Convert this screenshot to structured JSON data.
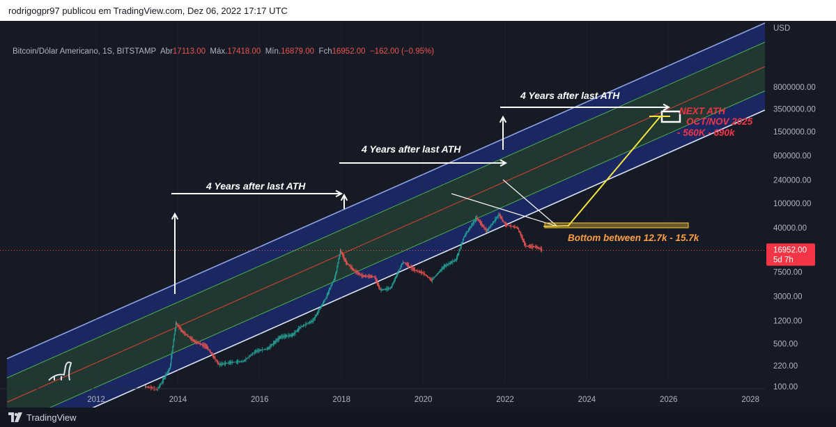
{
  "header": {
    "publisher_line": "rodrigogpr97 publicou em TradingView.com, Dez 06, 2022 17:17 UTC"
  },
  "symbol_bar": {
    "symbol": "Bitcoin/Dólar Americano, 1S, BITSTAMP",
    "open_label": "Abr",
    "open": "17113.00",
    "high_label": "Máx.",
    "high": "17418.00",
    "low_label": "Mín.",
    "low": "16879.00",
    "close_label": "Fch",
    "close": "16952.00",
    "change": "−162.00 (−0.95%)"
  },
  "footer": {
    "brand": "TradingView"
  },
  "colors": {
    "background": "#161a25",
    "channel_outer": "#1b2a6b",
    "channel_inner": "#223a2c",
    "channel_line": "#8fa4e8",
    "mid_line": "#e0442f",
    "green_line": "#4caf50",
    "up_candle": "#26a69a",
    "down_candle": "#ef5350",
    "price_label_bg": "#f23645",
    "annotation_white": "#ffffff",
    "annotation_yellow": "#f5e642",
    "annotation_orange": "#ff9f43",
    "annotation_red": "#f23645"
  },
  "chart_data": {
    "type": "line",
    "scale": "log",
    "currency_label": "USD",
    "x_ticks": [
      "2012",
      "2014",
      "2016",
      "2018",
      "2020",
      "2022",
      "2024",
      "2026",
      "2028"
    ],
    "y_ticks": [
      "8000000.00",
      "3500000.00",
      "1500000.00",
      "600000.00",
      "240000.00",
      "100000.00",
      "40000.00",
      "7500.00",
      "3000.00",
      "1200.00",
      "500.00",
      "220.00",
      "100.00"
    ],
    "y_tick_values": [
      8000000,
      3500000,
      1500000,
      600000,
      240000,
      100000,
      40000,
      7500,
      3000,
      1200,
      500,
      220,
      100
    ],
    "last_price": "16952.00",
    "last_price_value": 16952,
    "countdown": "5d 7h",
    "series": [
      {
        "name": "BTCUSD",
        "x": [
          2013.2,
          2013.5,
          2013.8,
          2013.95,
          2014.1,
          2014.4,
          2014.7,
          2015.0,
          2015.3,
          2015.6,
          2015.9,
          2016.2,
          2016.5,
          2016.8,
          2017.0,
          2017.3,
          2017.6,
          2017.85,
          2017.97,
          2018.1,
          2018.3,
          2018.5,
          2018.8,
          2018.95,
          2019.2,
          2019.5,
          2019.8,
          2020.0,
          2020.2,
          2020.5,
          2020.8,
          2021.0,
          2021.3,
          2021.55,
          2021.85,
          2022.0,
          2022.3,
          2022.5,
          2022.75,
          2022.93
        ],
        "y": [
          100,
          90,
          200,
          1100,
          800,
          550,
          450,
          230,
          250,
          260,
          380,
          420,
          650,
          700,
          950,
          1200,
          2700,
          6500,
          17000,
          11000,
          8000,
          6500,
          6300,
          3800,
          4100,
          11000,
          8000,
          7200,
          5500,
          9200,
          12000,
          29000,
          58000,
          35000,
          66000,
          45000,
          40000,
          20000,
          19500,
          16952
        ]
      }
    ],
    "annotations": [
      "4 Years after last ATH",
      "4 Years after last ATH",
      "4 Years after last ATH",
      "NEXT ATH",
      "OCT/NOV 2025",
      "- 560K - 690k",
      "Bottom between 12.7k - 15.7k"
    ]
  }
}
